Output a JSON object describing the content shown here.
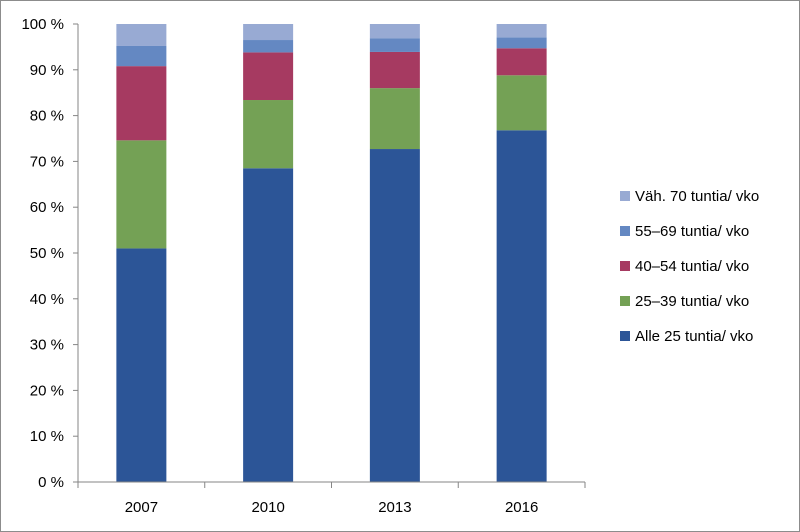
{
  "chart_data": {
    "type": "bar",
    "stacked": true,
    "categories": [
      "2007",
      "2010",
      "2013",
      "2016"
    ],
    "series": [
      {
        "name": "Alle 25 tuntia/ vko",
        "color": "#2c5597",
        "values": [
          51.0,
          68.5,
          72.7,
          76.8
        ]
      },
      {
        "name": "25–39 tuntia/ vko",
        "color": "#74a155",
        "values": [
          23.6,
          14.9,
          13.3,
          12.0
        ]
      },
      {
        "name": "40–54 tuntia/ vko",
        "color": "#a63a61",
        "values": [
          16.2,
          10.4,
          7.9,
          5.9
        ]
      },
      {
        "name": "55–69 tuntia/ vko",
        "color": "#6488c2",
        "values": [
          4.4,
          2.7,
          3.0,
          2.4
        ]
      },
      {
        "name": "Väh. 70 tuntia/ vko",
        "color": "#98aad3",
        "values": [
          4.8,
          3.5,
          3.1,
          2.9
        ]
      }
    ],
    "ylim": [
      0,
      100
    ],
    "yticks": [
      "0 %",
      "10 %",
      "20 %",
      "30 %",
      "40 %",
      "50 %",
      "60 %",
      "70 %",
      "80 %",
      "90 %",
      "100 %"
    ],
    "grid": false,
    "legend_position": "right"
  }
}
